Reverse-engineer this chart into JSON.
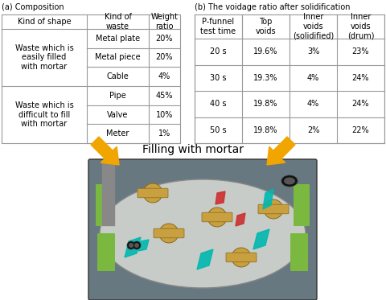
{
  "title_a": "(a) Composition",
  "title_b": "(b) The voidage ratio after solidification",
  "table_a_headers": [
    "Kind of shape",
    "Kind of\nwaste",
    "Weight\nratio"
  ],
  "table_a_rows": [
    [
      "Waste which is\neasily filled\nwith mortar",
      "Metal plate",
      "20%"
    ],
    [
      "Waste which is\neasily filled\nwith mortar",
      "Metal piece",
      "20%"
    ],
    [
      "Waste which is\neasily filled\nwith mortar",
      "Cable",
      "4%"
    ],
    [
      "Waste which is\ndifficult to fill\nwith mortar",
      "Pipe",
      "45%"
    ],
    [
      "Waste which is\ndifficult to fill\nwith mortar",
      "Valve",
      "10%"
    ],
    [
      "Waste which is\ndifficult to fill\nwith mortar",
      "Meter",
      "1%"
    ]
  ],
  "table_b_headers": [
    "P-funnel\ntest time",
    "Top\nvoids",
    "Inner\nvoids\n(solidified)",
    "Inner\nvoids\n(drum)"
  ],
  "table_b_rows": [
    [
      "20 s",
      "19.6%",
      "3%",
      "23%"
    ],
    [
      "30 s",
      "19.3%",
      "4%",
      "24%"
    ],
    [
      "40 s",
      "19.8%",
      "4%",
      "24%"
    ],
    [
      "50 s",
      "19.8%",
      "2%",
      "22%"
    ]
  ],
  "filling_label": "Filling with mortar",
  "arrow_color": "#F0A500",
  "bg_color": "#ffffff",
  "line_color": "#999999",
  "text_color": "#000000",
  "font_size": 7.0,
  "img_bg_color": "#7a8a9a",
  "img_inner_color": "#c8cfc8",
  "img_border_color": "#4a5a6a"
}
